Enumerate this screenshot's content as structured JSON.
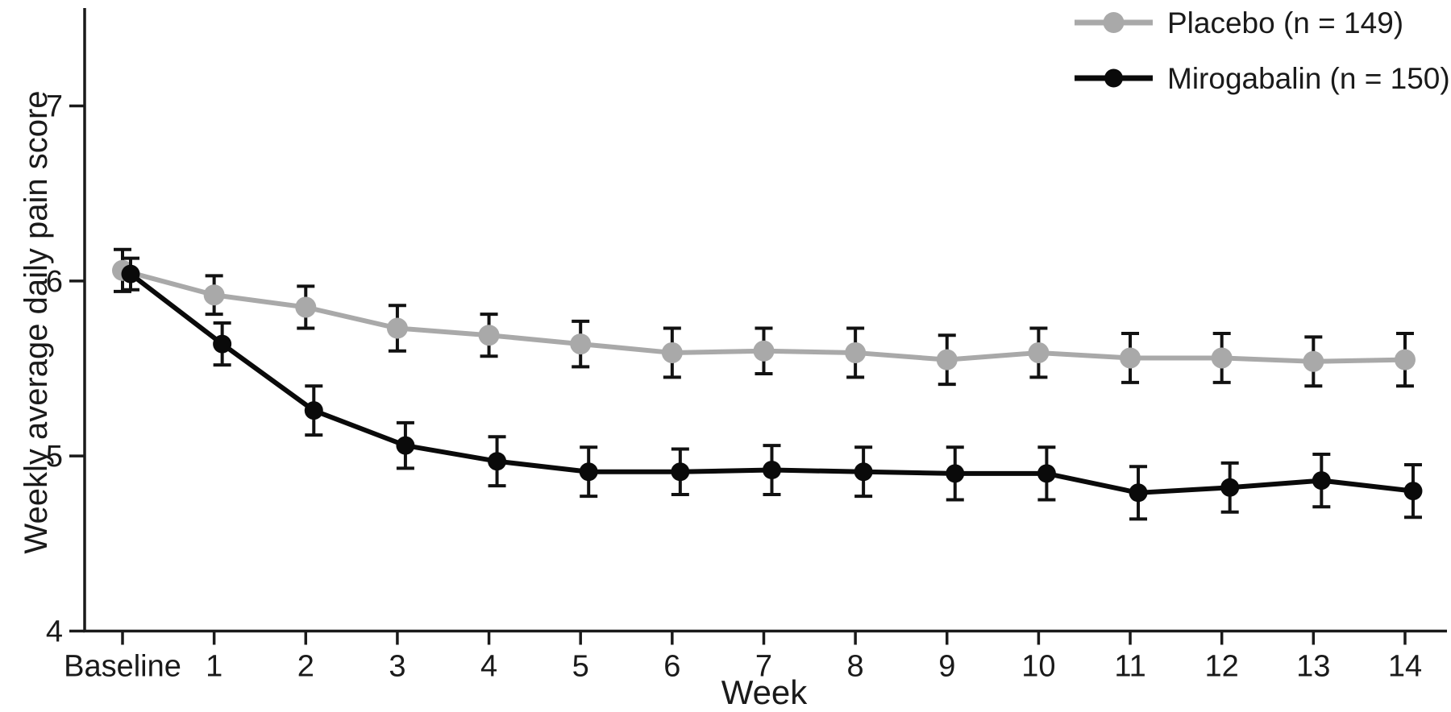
{
  "figure": {
    "background": "#ffffff",
    "text_color": "#1a1a1a"
  },
  "chart_data": {
    "type": "line",
    "title": "",
    "xlabel": "Week",
    "ylabel": "Weekly average daily pain score",
    "categories": [
      "Baseline",
      "1",
      "2",
      "3",
      "4",
      "5",
      "6",
      "7",
      "8",
      "9",
      "10",
      "11",
      "12",
      "13",
      "14"
    ],
    "yticks": [
      4,
      5,
      6,
      7
    ],
    "ylim": [
      4,
      7.56
    ],
    "grid": false,
    "legend_position": "top-right",
    "error_bars": true,
    "axis_color": "#1a1a1a",
    "errorbar_color": "#111111",
    "series": [
      {
        "name": "Placebo (n = 149)",
        "id": "placebo",
        "color": "#a9a9a9",
        "marker": "circle",
        "values": [
          6.06,
          5.92,
          5.85,
          5.73,
          5.69,
          5.64,
          5.59,
          5.6,
          5.59,
          5.55,
          5.59,
          5.56,
          5.56,
          5.54,
          5.55
        ],
        "errors": [
          0.12,
          0.11,
          0.12,
          0.13,
          0.12,
          0.13,
          0.14,
          0.13,
          0.14,
          0.14,
          0.14,
          0.14,
          0.14,
          0.14,
          0.15
        ]
      },
      {
        "name": "Mirogabalin (n = 150)",
        "id": "mirogabalin",
        "color": "#0a0a0a",
        "marker": "circle",
        "values": [
          6.04,
          5.64,
          5.26,
          5.06,
          4.97,
          4.91,
          4.91,
          4.92,
          4.91,
          4.9,
          4.9,
          4.79,
          4.82,
          4.86,
          4.8
        ],
        "errors": [
          0.09,
          0.12,
          0.14,
          0.13,
          0.14,
          0.14,
          0.13,
          0.14,
          0.14,
          0.15,
          0.15,
          0.15,
          0.14,
          0.15,
          0.15
        ]
      }
    ]
  }
}
